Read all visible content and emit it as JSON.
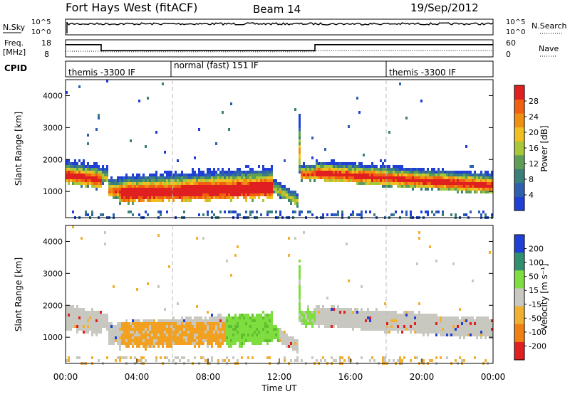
{
  "header": {
    "title": "Fort Hays West (fitACF)",
    "beam": "Beam 14",
    "date": "19/Sep/2012"
  },
  "top_panels": {
    "nsky_label": "N.Sky",
    "nsky_ticks": [
      "10^5",
      "10^0"
    ],
    "nsearch_label": "N.Search",
    "nsearch_ticks": [
      "10^5",
      "10^0"
    ],
    "freq_label": "Freq.",
    "freq_unit": "[MHz]",
    "freq_ticks": [
      "18",
      "8"
    ],
    "nave_label": "Nave",
    "nave_ticks": [
      "60",
      "0"
    ],
    "cpid_label": "CPID",
    "modes": [
      {
        "start_h": 0,
        "label": "themis -3300 IF"
      },
      {
        "start_h": 6,
        "label": "normal (fast) 151 IF"
      },
      {
        "start_h": 18,
        "label": "themis -3300 IF"
      }
    ],
    "freq_steps": [
      [
        0,
        16
      ],
      [
        2,
        12.5
      ],
      [
        14,
        16
      ],
      [
        24,
        16
      ]
    ],
    "nave_steps": [
      [
        0,
        20
      ],
      [
        2,
        18
      ],
      [
        14,
        22
      ],
      [
        24,
        22
      ]
    ]
  },
  "chart_data": [
    {
      "type": "heatmap",
      "name": "power",
      "ylabel": "Slant Range [km]",
      "xlabel": "",
      "yticks": [
        "1000",
        "2000",
        "3000",
        "4000"
      ],
      "ytick_values": [
        1000,
        2000,
        3000,
        4000
      ],
      "ylim": [
        180,
        4500
      ],
      "xlim": [
        0,
        24
      ],
      "colorbar_label": "Power [dB]",
      "colorbar_ticks": [
        "4",
        "8",
        "12",
        "16",
        "20",
        "24",
        "28"
      ],
      "colorbar_colors": [
        "#1f3fd6",
        "#2f5fb0",
        "#3a7f7a",
        "#5f9f55",
        "#a8c83a",
        "#f0c020",
        "#f09010",
        "#f06010",
        "#e02020"
      ]
    },
    {
      "type": "heatmap",
      "name": "velocity",
      "ylabel": "Slant Range [km]",
      "xlabel": "Time UT",
      "xticks": [
        "00:00",
        "04:00",
        "08:00",
        "12:00",
        "16:00",
        "20:00",
        "00:00"
      ],
      "xtick_values": [
        0,
        4,
        8,
        12,
        16,
        20,
        24
      ],
      "yticks": [
        "1000",
        "2000",
        "3000",
        "4000"
      ],
      "ytick_values": [
        1000,
        2000,
        3000,
        4000
      ],
      "ylim": [
        180,
        4500
      ],
      "xlim": [
        0,
        24
      ],
      "colorbar_label": "Velocity [m s⁻¹]",
      "colorbar_ticks": [
        "200",
        "100",
        "50",
        "15",
        "-15",
        "-50",
        "-100",
        "-200"
      ],
      "colorbar_colors": [
        "#1f3fd6",
        "#2f8f6f",
        "#7fdd40",
        "#c8c8c0",
        "#f2b030",
        "#f08010",
        "#e02020"
      ]
    }
  ]
}
